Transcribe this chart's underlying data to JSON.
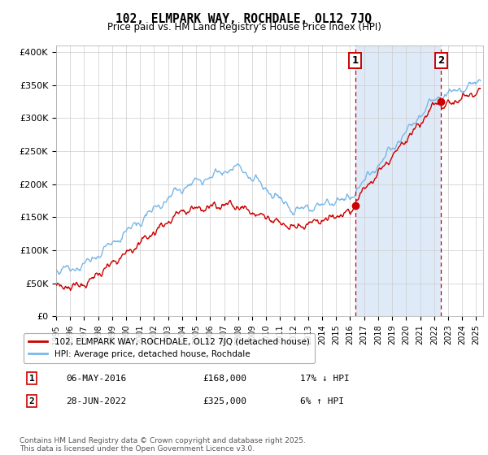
{
  "title": "102, ELMPARK WAY, ROCHDALE, OL12 7JQ",
  "subtitle": "Price paid vs. HM Land Registry's House Price Index (HPI)",
  "ylabel_ticks": [
    "£0",
    "£50K",
    "£100K",
    "£150K",
    "£200K",
    "£250K",
    "£300K",
    "£350K",
    "£400K"
  ],
  "ytick_values": [
    0,
    50000,
    100000,
    150000,
    200000,
    250000,
    300000,
    350000,
    400000
  ],
  "ylim": [
    0,
    410000
  ],
  "xlim_start": 1995.0,
  "xlim_end": 2025.5,
  "hpi_color": "#7ab8e8",
  "hpi_fill_color": "#deeaf7",
  "price_color": "#cc0000",
  "annotation_color": "#cc0000",
  "marker1_x": 2016.37,
  "marker1_y": 168000,
  "marker2_x": 2022.49,
  "marker2_y": 325000,
  "legend_line1": "102, ELMPARK WAY, ROCHDALE, OL12 7JQ (detached house)",
  "legend_line2": "HPI: Average price, detached house, Rochdale",
  "table": [
    {
      "num": "1",
      "date": "06-MAY-2016",
      "price": "£168,000",
      "hpi": "17% ↓ HPI"
    },
    {
      "num": "2",
      "date": "28-JUN-2022",
      "price": "£325,000",
      "hpi": "6% ↑ HPI"
    }
  ],
  "footnote": "Contains HM Land Registry data © Crown copyright and database right 2025.\nThis data is licensed under the Open Government Licence v3.0.",
  "background_color": "#ffffff",
  "grid_color": "#cccccc"
}
